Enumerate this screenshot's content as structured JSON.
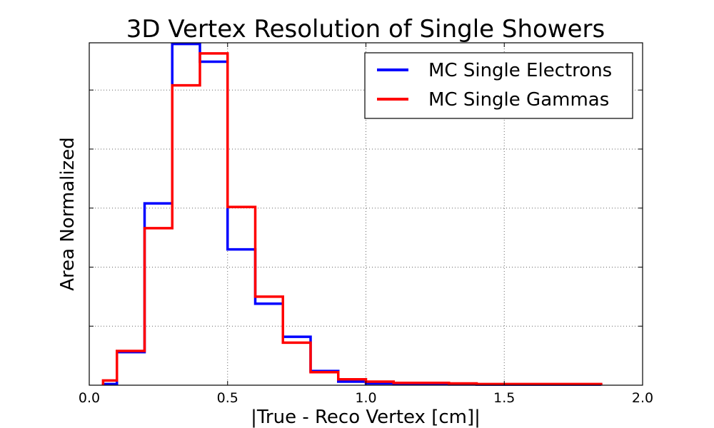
{
  "chart_data": {
    "type": "line",
    "style": "step-histogram",
    "title": "3D Vertex Resolution of Single Showers",
    "xlabel": "|True - Reco Vertex [cm]|",
    "ylabel": "Area Normalized",
    "xlim": [
      0.0,
      2.0
    ],
    "ylim": [
      0.0,
      0.29
    ],
    "y_tick_labels_shown": false,
    "grid": true,
    "legend_position": "top-right",
    "x_ticks": [
      {
        "value": 0.0,
        "label": "0.0"
      },
      {
        "value": 0.5,
        "label": "0.5"
      },
      {
        "value": 1.0,
        "label": "1.0"
      },
      {
        "value": 1.5,
        "label": "1.5"
      },
      {
        "value": 2.0,
        "label": "2.0"
      }
    ],
    "y_ticks": [
      0.05,
      0.1,
      0.15,
      0.2,
      0.25
    ],
    "bin_edges": [
      0.05,
      0.1,
      0.2,
      0.3,
      0.4,
      0.5,
      0.6,
      0.7,
      0.8,
      0.9,
      1.0,
      1.1,
      1.2,
      1.3,
      1.4,
      1.5,
      1.6,
      1.7,
      1.8,
      1.85
    ],
    "series": [
      {
        "name": "MC Single Electrons",
        "color": "#0000ff",
        "values": [
          0.001,
          0.028,
          0.154,
          0.289,
          0.274,
          0.115,
          0.069,
          0.041,
          0.012,
          0.003,
          0.0015,
          0.001,
          0.001,
          0.0007,
          0.0005,
          0.0005,
          0.0005,
          0.0005,
          0.0005
        ]
      },
      {
        "name": "MC Single Gammas",
        "color": "#ff0000",
        "values": [
          0.004,
          0.029,
          0.133,
          0.254,
          0.281,
          0.151,
          0.075,
          0.036,
          0.011,
          0.005,
          0.003,
          0.002,
          0.002,
          0.0015,
          0.001,
          0.001,
          0.001,
          0.001,
          0.001
        ]
      }
    ]
  }
}
